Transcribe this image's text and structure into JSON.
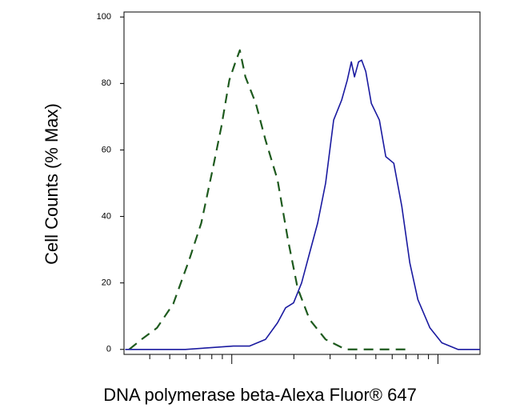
{
  "chart_data": {
    "type": "line",
    "xlabel": "DNA polymerase beta-Alexa Fluor® 647",
    "ylabel": "Cell Counts (% Max)",
    "xscale": "log",
    "xlim": [
      300,
      16000
    ],
    "xticks": [
      1000,
      10000
    ],
    "xminorticks": [
      400,
      500,
      600,
      700,
      800,
      900,
      2000,
      3000,
      4000,
      5000,
      6000,
      7000,
      8000,
      9000
    ],
    "ylim": [
      -1.5,
      101.5
    ],
    "yticks": [
      0,
      20,
      40,
      60,
      80,
      100
    ],
    "series": [
      {
        "color": "#1e5a1e",
        "dash": true,
        "x": [
          318,
          363,
          434,
          520,
          622,
          711,
          813,
          890,
          973,
          1036,
          1094,
          1164,
          1308,
          1457,
          1667,
          1873,
          2085,
          2384,
          2852,
          3568,
          5108,
          7307
        ],
        "values": [
          0,
          2.9,
          6.5,
          13.7,
          27,
          38,
          55,
          67,
          81,
          86,
          90,
          82,
          74,
          63,
          51,
          33,
          18.5,
          9,
          3,
          0,
          0,
          0
        ]
      },
      {
        "color": "#1a1aa0",
        "dash": false,
        "x": [
          304,
          455,
          595,
          778,
          1018,
          1218,
          1457,
          1667,
          1823,
          1994,
          2181,
          2385,
          2609,
          2852,
          3120,
          3412,
          3633,
          3802,
          3938,
          4121,
          4266,
          4467,
          4753,
          5200,
          5585,
          6109,
          6682,
          7307,
          7993,
          9143,
          10447,
          12504,
          16000
        ],
        "values": [
          0,
          0,
          0,
          0.5,
          1,
          1,
          3,
          8,
          12.5,
          14,
          20,
          29,
          38,
          50,
          69,
          75,
          81,
          86.5,
          82,
          86.5,
          87,
          83.6,
          74,
          69,
          58,
          56,
          43,
          26,
          15,
          6.5,
          2,
          0,
          0
        ]
      }
    ]
  }
}
